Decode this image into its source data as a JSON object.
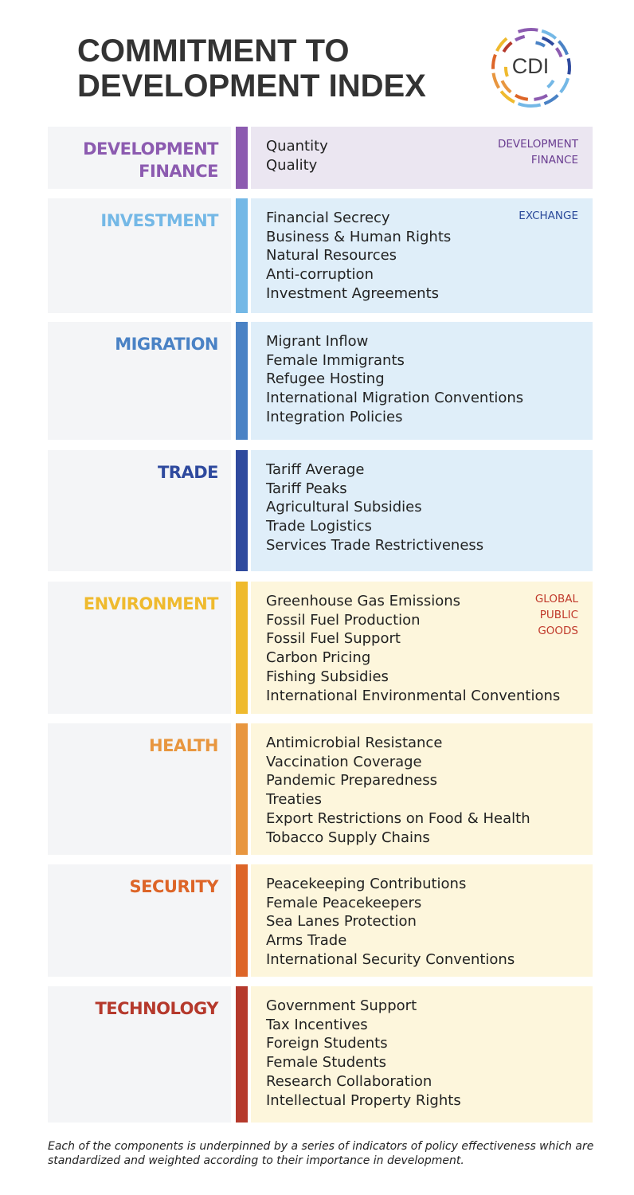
{
  "header": {
    "title_line1": "COMMITMENT TO",
    "title_line2": "DEVELOPMENT INDEX",
    "logo_text": "CDI"
  },
  "colors": {
    "label_bg": "#f4f5f7",
    "development_finance_bg": "#ebe6f1",
    "exchange_bg": "#dfeef9",
    "global_public_goods_bg": "#fdf6dc",
    "development_finance_tag": "#6a3d91",
    "exchange_tag": "#2b4a9a",
    "global_public_goods_tag": "#c0392b"
  },
  "components": [
    {
      "label_lines": [
        "DEVELOPMENT",
        "FINANCE"
      ],
      "color": "#8c5bb0",
      "group": "development_finance",
      "tag_lines": [
        "DEVELOPMENT",
        "FINANCE"
      ],
      "items": [
        "Quantity",
        "Quality"
      ]
    },
    {
      "label_lines": [
        "INVESTMENT"
      ],
      "color": "#74b8e6",
      "group": "exchange",
      "tag_lines": [
        "EXCHANGE"
      ],
      "items": [
        "Financial Secrecy",
        "Business & Human Rights",
        "Natural Resources",
        "Anti-corruption",
        "Investment Agreements"
      ]
    },
    {
      "label_lines": [
        "MIGRATION"
      ],
      "color": "#4a82c5",
      "group": "exchange",
      "tag_lines": [],
      "items": [
        "Migrant Inflow",
        "Female Immigrants",
        "Refugee Hosting",
        "International Migration Conventions",
        "Integration Policies"
      ]
    },
    {
      "label_lines": [
        "TRADE"
      ],
      "color": "#2f4a9e",
      "group": "exchange",
      "tag_lines": [],
      "items": [
        "Tariff Average",
        "Tariff Peaks",
        "Agricultural Subsidies",
        "Trade Logistics",
        "Services Trade Restrictiveness"
      ]
    },
    {
      "label_lines": [
        "ENVIRONMENT"
      ],
      "color": "#efba2e",
      "group": "global_public_goods",
      "tag_lines": [
        "GLOBAL",
        "PUBLIC",
        "GOODS"
      ],
      "items": [
        "Greenhouse Gas Emissions",
        "Fossil Fuel Production",
        "Fossil Fuel Support",
        "Carbon Pricing",
        "Fishing Subsidies",
        "International Environmental Conventions"
      ]
    },
    {
      "label_lines": [
        "HEALTH"
      ],
      "color": "#e8963f",
      "group": "global_public_goods",
      "tag_lines": [],
      "items": [
        "Antimicrobial Resistance",
        "Vaccination Coverage",
        "Pandemic Preparedness",
        "Treaties",
        "Export Restrictions on Food & Health",
        "Tobacco Supply Chains"
      ]
    },
    {
      "label_lines": [
        "SECURITY"
      ],
      "color": "#dd6528",
      "group": "global_public_goods",
      "tag_lines": [],
      "items": [
        "Peacekeeping Contributions",
        "Female Peacekeepers",
        "Sea Lanes Protection",
        "Arms Trade",
        "International Security Conventions"
      ]
    },
    {
      "label_lines": [
        "TECHNOLOGY"
      ],
      "color": "#b5392c",
      "group": "global_public_goods",
      "tag_lines": [],
      "items": [
        "Government Support",
        "Tax Incentives",
        "Foreign Students",
        "Female Students",
        "Research Collaboration",
        "Intellectual Property Rights"
      ]
    }
  ],
  "footnote": "Each of the components is underpinned by a series of indicators of policy effectiveness which are standardized and weighted according to their importance in development."
}
